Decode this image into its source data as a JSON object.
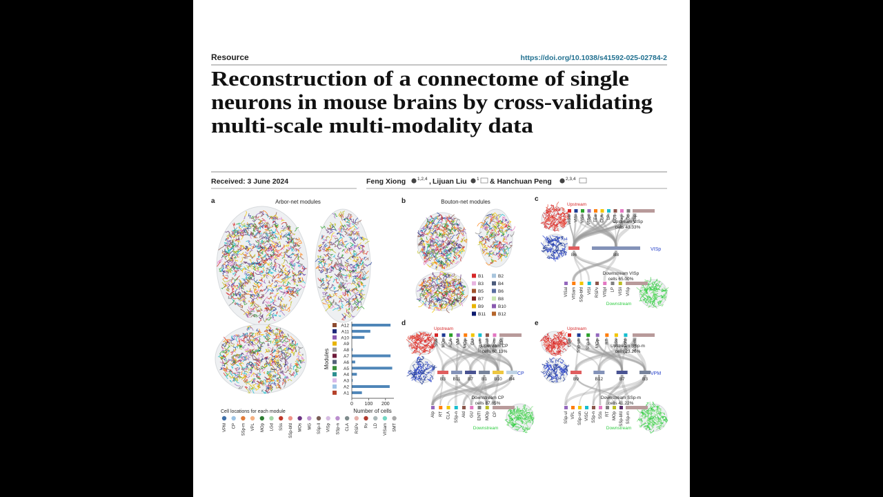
{
  "header": {
    "section": "Resource",
    "doi": "https://doi.org/10.1038/s41592-025-02784-2"
  },
  "title_lines": [
    "Reconstruction of a connectome of single",
    "neurons in mouse brains by cross-validating",
    "multi-scale multi-modality data"
  ],
  "received": "Received: 3 June 2024",
  "authors": [
    {
      "name": "Feng Xiong",
      "affil": "1,2,4",
      "sep": ","
    },
    {
      "name": "Lijuan Liu",
      "affil": "1"
    },
    {
      "name": "& Hanchuan Peng",
      "affil": "2,3,4"
    }
  ],
  "figure": {
    "a": {
      "letter": "a",
      "title": "Arbor-net modules",
      "chart": {
        "type": "bar",
        "categories": [
          "A12",
          "A11",
          "A10",
          "A9",
          "A8",
          "A7",
          "A6",
          "A5",
          "A4",
          "A3",
          "A2",
          "A1"
        ],
        "values": [
          230,
          110,
          75,
          0,
          5,
          230,
          20,
          240,
          30,
          5,
          225,
          60
        ],
        "xlim": [
          0,
          250
        ],
        "xticks": [
          0,
          100,
          200
        ],
        "xlabel": "Number of cells",
        "ylabel": "Modules"
      },
      "legend_title": "Cell locations for each module",
      "locations": [
        "VPM",
        "CP",
        "SSp-m",
        "VPL",
        "MOp",
        "LGd",
        "SSs",
        "SSp-bfd",
        "MOs",
        "MG",
        "SSp-ll",
        "VISp",
        "SSp-n",
        "CLA",
        "RSPv",
        "Rv",
        "LD",
        "VISam",
        "SMT"
      ]
    },
    "b": {
      "letter": "b",
      "title": "Bouton-net modules",
      "modules": [
        "B1",
        "B2",
        "B3",
        "B4",
        "B5",
        "B6",
        "B7",
        "B8",
        "B9",
        "B10",
        "B11",
        "B12"
      ]
    },
    "c": {
      "letter": "c",
      "upstream": "Upstream",
      "downstream": "Downstream",
      "up_regions": [
        "VISal",
        "VISl",
        "VISli",
        "VISpl",
        "TEa",
        "CLA",
        "LP",
        "ECT",
        "RSPagl",
        "LGd",
        "VISp"
      ],
      "up_note": [
        "Upstream VISp",
        "cells 43.33%"
      ],
      "modules": [
        "B6",
        "B8"
      ],
      "target": "VISp",
      "down_note": [
        "Downstream VISp",
        "cells 65.00%"
      ],
      "down_regions": [
        "VISal",
        "VISam",
        "SSp-bfd",
        "VISl",
        "RSPv",
        "VISpl",
        "LP",
        "VISli",
        "VISp"
      ]
    },
    "d": {
      "letter": "d",
      "upstream": "Upstream",
      "downstream": "Downstream",
      "up_regions": [
        "SSs",
        "MOs",
        "ACA",
        "VM",
        "MOp",
        "GU",
        "SSp-un",
        "SSp-ul",
        "SSp-m",
        "CP"
      ],
      "up_note": [
        "Upstream CP",
        "cells 60.13%"
      ],
      "modules": [
        "B3",
        "B11",
        "B7",
        "B1",
        "B10",
        "B4"
      ],
      "target": "CP",
      "down_note": [
        "Downstream CP",
        "cells 87.85%"
      ],
      "down_regions": [
        "AIp",
        "RT",
        "CLA",
        "SSp-n",
        "AId",
        "GU",
        "ENTl",
        "MOp",
        "CP"
      ]
    },
    "e": {
      "letter": "e",
      "upstream": "Upstream",
      "downstream": "Downstream",
      "up_regions": [
        "LGd",
        "SSp-un",
        "SSp-ll",
        "MOp",
        "RT",
        "SSs",
        "SSp-bfd",
        "SSp-m"
      ],
      "up_note": [
        "Upstream SSp-m",
        "cells 23.26%"
      ],
      "modules": [
        "B9",
        "B12",
        "B7",
        "B3"
      ],
      "target": "VPM",
      "down_note": [
        "Downstream SSp-m",
        "cells 41.22%"
      ],
      "down_regions": [
        "SSp-ul",
        "VPL",
        "SSp-un",
        "VISC",
        "SSp-n",
        "SSs",
        "RT",
        "MOp",
        "SSp-bfd",
        "SSp-m"
      ]
    }
  }
}
